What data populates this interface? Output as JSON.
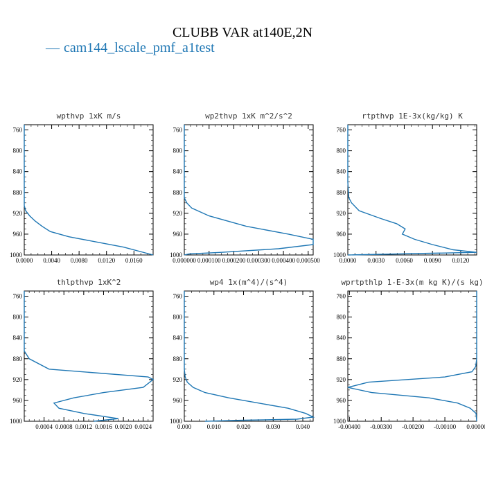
{
  "figure": {
    "title": "CLUBB VAR at140E,2N",
    "legend_label": "cam144_lscale_pmf_a1test",
    "line_color": "#1f77b4"
  },
  "chart_data": [
    {
      "type": "line",
      "title": "wpthvp  1xK m/s",
      "xlim": [
        0,
        0.0188
      ],
      "ylim": [
        1000,
        750
      ],
      "xticks": [
        0.0,
        0.004,
        0.008,
        0.012,
        0.016
      ],
      "xtick_labels": [
        "0.0000",
        "0.0040",
        "0.0080",
        "0.0120",
        "0.0160"
      ],
      "yticks": [
        760,
        800,
        840,
        880,
        920,
        960,
        1000
      ],
      "series": [
        {
          "x": [
            0.0,
            0.0,
            0.0,
            0.0,
            0.0,
            0.0002,
            0.0008,
            0.0016,
            0.0026,
            0.0038,
            0.0065,
            0.0105,
            0.0145,
            0.0188
          ],
          "y": [
            750,
            800,
            850,
            880,
            905,
            915,
            925,
            935,
            945,
            955,
            965,
            975,
            985,
            1000
          ]
        }
      ]
    },
    {
      "type": "line",
      "title": "wp2thvp  1xK m^2/s^2",
      "xlim": [
        0,
        0.00052
      ],
      "ylim": [
        1000,
        750
      ],
      "xticks": [
        0.0,
        0.0001,
        0.0002,
        0.0003,
        0.0004,
        0.0005
      ],
      "xtick_labels": [
        "0.000000",
        "0.000100",
        "0.000200",
        "0.000300",
        "0.000400",
        "0.000500"
      ],
      "yticks": [
        760,
        800,
        840,
        880,
        920,
        960,
        1000
      ],
      "series": [
        {
          "x": [
            0.0,
            0.0,
            0.0,
            1e-05,
            3e-05,
            0.0001,
            0.00025,
            0.00042,
            0.00052,
            0.00052,
            0.00038,
            0.00015,
            2e-05,
            0.0
          ],
          "y": [
            750,
            850,
            890,
            900,
            910,
            925,
            945,
            960,
            970,
            980,
            988,
            995,
            998,
            1000
          ]
        }
      ]
    },
    {
      "type": "line",
      "title": "rtpthvp  1E-3x(kg/kg) K",
      "xlim": [
        0,
        0.0137
      ],
      "ylim": [
        1000,
        750
      ],
      "xticks": [
        0.0,
        0.003,
        0.006,
        0.009,
        0.012
      ],
      "xtick_labels": [
        "0.0000",
        "0.0030",
        "0.0060",
        "0.0090",
        "0.0120"
      ],
      "yticks": [
        760,
        800,
        840,
        880,
        920,
        960,
        1000
      ],
      "series": [
        {
          "x": [
            0.0,
            0.0,
            0.0001,
            0.0004,
            0.0012,
            0.0035,
            0.0052,
            0.0061,
            0.0058,
            0.0071,
            0.009,
            0.0112,
            0.0137,
            0.0
          ],
          "y": [
            750,
            860,
            890,
            900,
            915,
            930,
            940,
            950,
            960,
            970,
            980,
            990,
            995,
            1000
          ]
        }
      ]
    },
    {
      "type": "line",
      "title": "thlpthvp  1xK^2",
      "xlim": [
        0,
        0.0026
      ],
      "ylim": [
        1000,
        750
      ],
      "xticks": [
        0.0004,
        0.0008,
        0.0012,
        0.0016,
        0.002,
        0.0024
      ],
      "xtick_labels": [
        "0.0004",
        "0.0008",
        "0.0012",
        "0.0016",
        "0.0020",
        "0.0024"
      ],
      "yticks": [
        760,
        800,
        840,
        880,
        920,
        960,
        1000
      ],
      "series": [
        {
          "x": [
            0.0,
            0.0,
            0.0,
            0.0001,
            0.0005,
            0.0025,
            0.0026,
            0.0024,
            0.0016,
            0.001,
            0.0006,
            0.0007,
            0.0012,
            0.0019,
            0.0014
          ],
          "y": [
            750,
            850,
            865,
            880,
            900,
            915,
            920,
            935,
            945,
            955,
            965,
            975,
            985,
            995,
            1000
          ]
        }
      ]
    },
    {
      "type": "line",
      "title": "wp4  1x(m^4)/(s^4)",
      "xlim": [
        0,
        0.0435
      ],
      "ylim": [
        1000,
        750
      ],
      "xticks": [
        0.0,
        0.01,
        0.02,
        0.03,
        0.04
      ],
      "xtick_labels": [
        "0.000",
        "0.010",
        "0.020",
        "0.030",
        "0.040"
      ],
      "yticks": [
        760,
        800,
        840,
        880,
        920,
        960,
        1000
      ],
      "series": [
        {
          "x": [
            0.0,
            0.0,
            0.0003,
            0.001,
            0.003,
            0.007,
            0.015,
            0.025,
            0.035,
            0.041,
            0.0435,
            0.038,
            0.02,
            0.007
          ],
          "y": [
            750,
            900,
            915,
            925,
            935,
            945,
            955,
            965,
            975,
            985,
            992,
            996,
            998,
            1000
          ]
        }
      ]
    },
    {
      "type": "line",
      "title": "wprtpthlp  1-E-3x(m kg K)/(s kg)",
      "xlim": [
        -0.00405,
        0.0
      ],
      "ylim": [
        1000,
        750
      ],
      "xticks": [
        -0.004,
        -0.003,
        -0.002,
        -0.001,
        0.0
      ],
      "xtick_labels": [
        "-0.00400",
        "-0.00300",
        "-0.00200",
        "-0.00100",
        "0.00000"
      ],
      "yticks": [
        760,
        800,
        840,
        880,
        920,
        960,
        1000
      ],
      "series": [
        {
          "x": [
            0.0,
            0.0,
            -3e-05,
            -0.00015,
            -0.001,
            -0.0034,
            -0.00405,
            -0.0033,
            -0.0015,
            -0.0006,
            -0.0002,
            -2e-05,
            0.0
          ],
          "y": [
            750,
            880,
            895,
            905,
            915,
            925,
            935,
            945,
            955,
            965,
            975,
            985,
            1000
          ]
        }
      ]
    }
  ]
}
